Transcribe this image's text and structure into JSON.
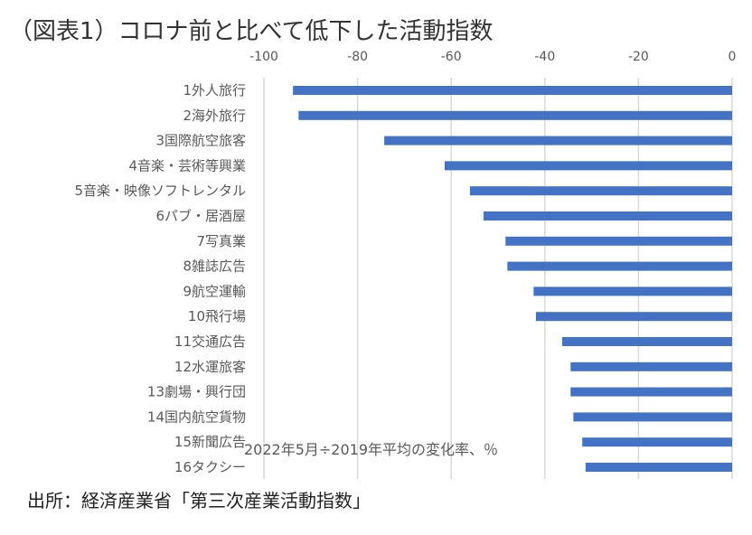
{
  "title": "（図表1）コロナ前と比べて低下した活動指数",
  "source": "出所：経済産業省「第三次産業活動指数」",
  "chart_data": {
    "type": "bar",
    "orientation": "horizontal",
    "title": "（図表1）コロナ前と比べて低下した活動指数",
    "xlabel": "2022年5月÷2019年平均の変化率、％",
    "categories": [
      "1外人旅行",
      "2海外旅行",
      "3国際航空旅客",
      "4音楽・芸術等興業",
      "5音楽・映像ソフトレンタル",
      "6パブ・居酒屋",
      "7写真業",
      "8雑誌広告",
      "9航空運輸",
      "10飛行場",
      "11交通広告",
      "12水運旅客",
      "13劇場・興行団",
      "14国内航空貨物",
      "15新聞広告",
      "16タクシー"
    ],
    "values": [
      -93.8,
      -92.6,
      -74.3,
      -61.4,
      -56.0,
      -53.1,
      -48.4,
      -48.0,
      -42.4,
      -41.9,
      -36.3,
      -34.5,
      -34.5,
      -33.9,
      -32.0,
      -31.3
    ],
    "xlim": [
      -100,
      0
    ],
    "xticks": [
      -100,
      -80,
      -60,
      -40,
      -20,
      0
    ],
    "xtick_labels": [
      "-100",
      "-80",
      "-60",
      "-40",
      "-20",
      "0"
    ],
    "axis_position": "top",
    "grid": true,
    "bar_color": "#4472C4",
    "grid_color": "#D9D9D9"
  }
}
